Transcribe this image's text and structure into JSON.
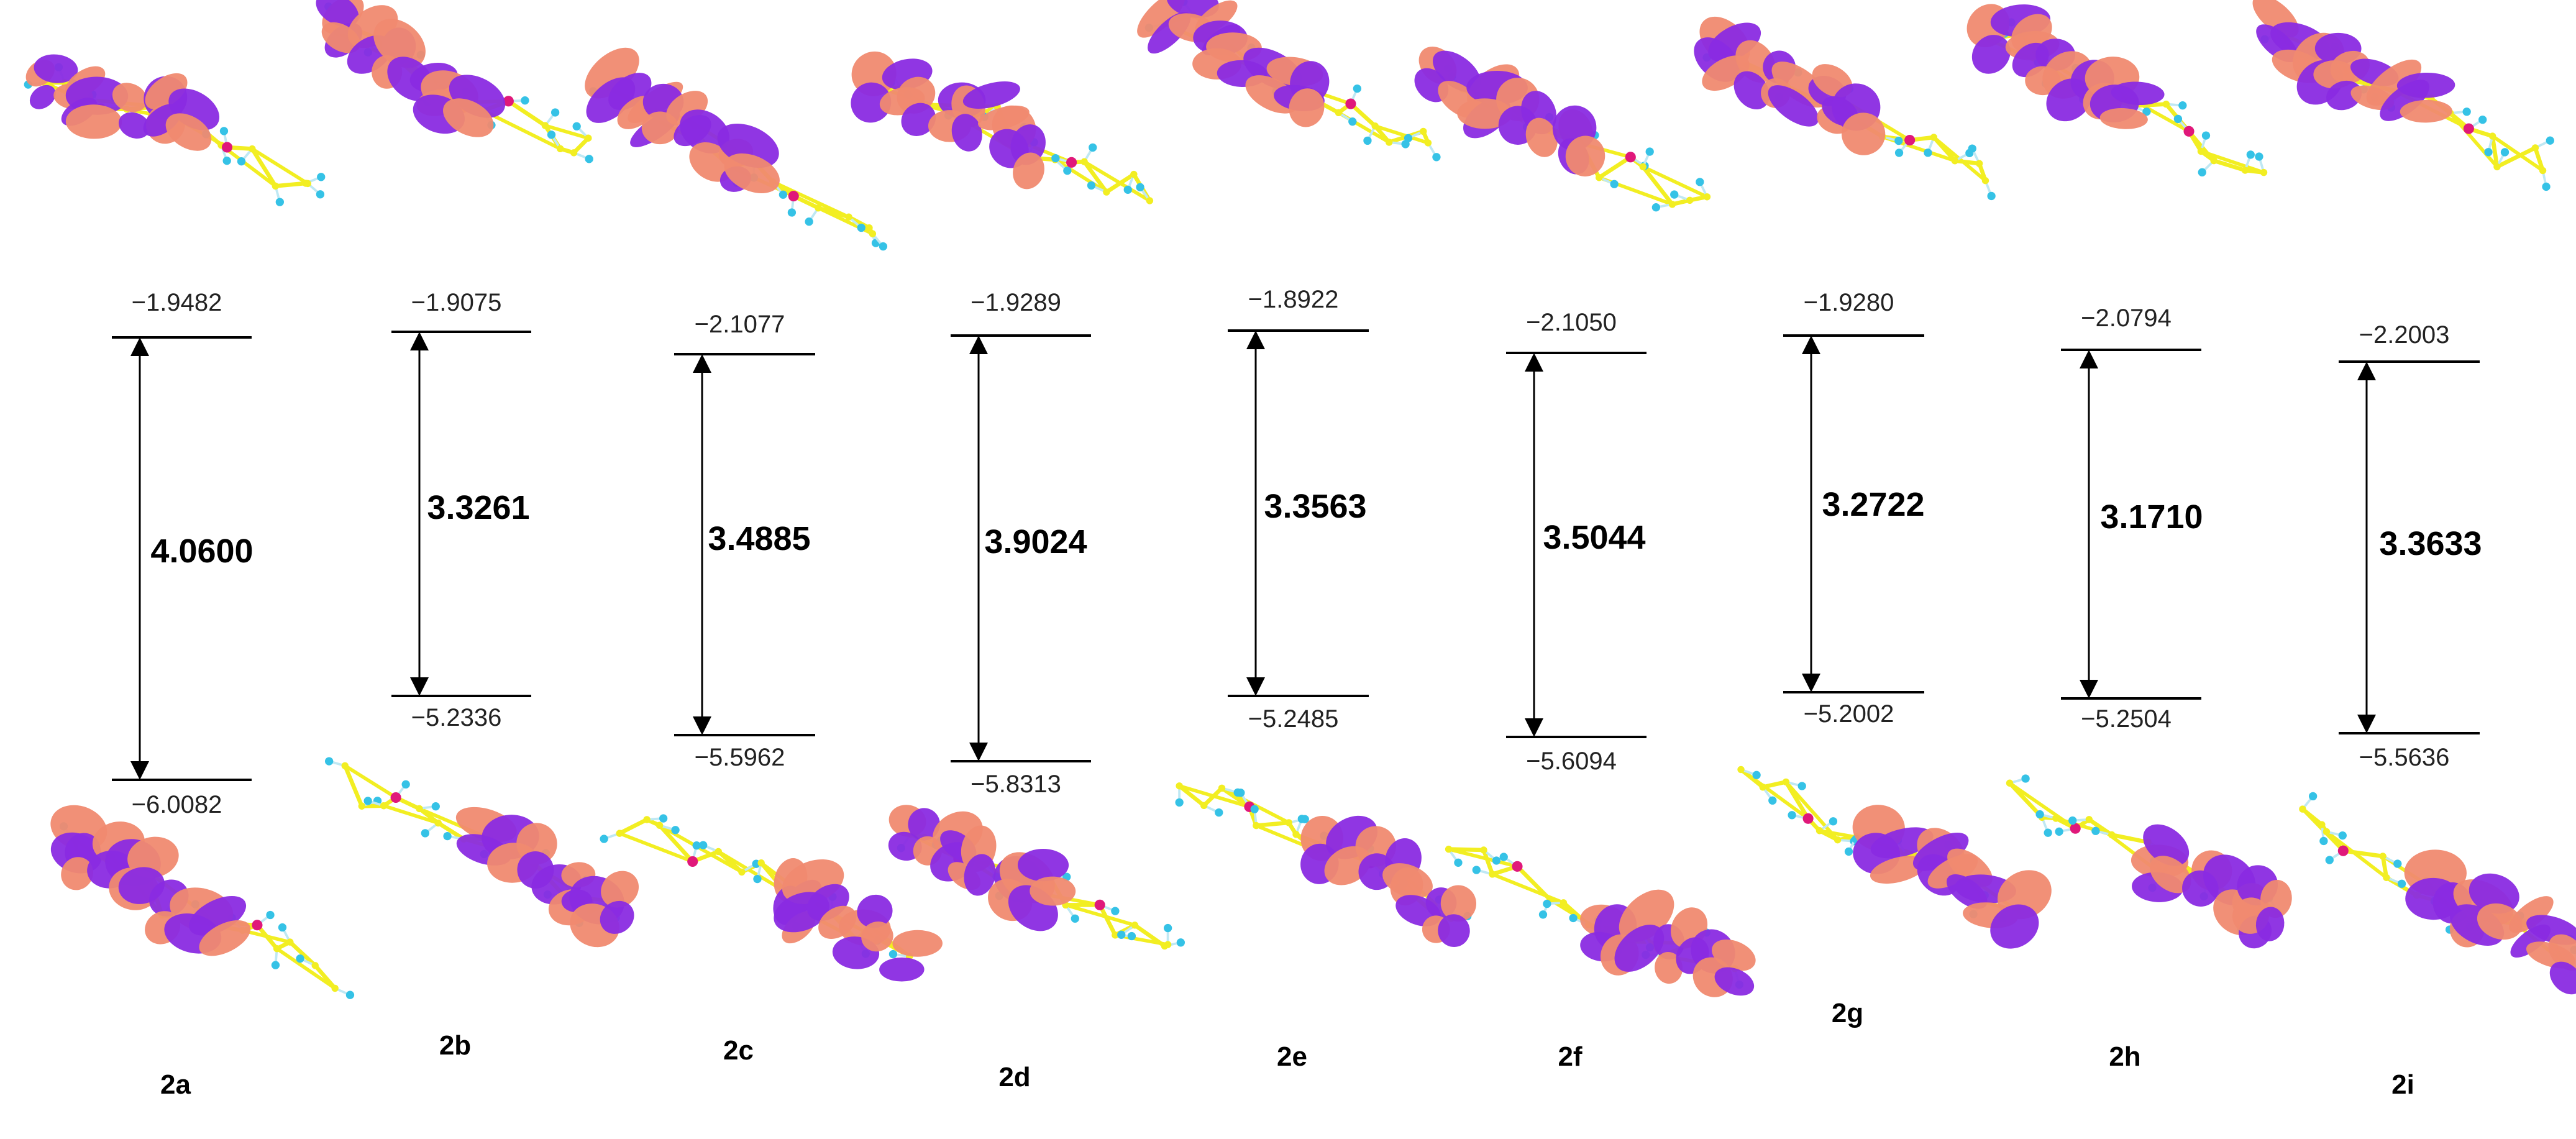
{
  "figure": {
    "type": "homo-lumo-energy-level-diagram",
    "colors": {
      "orbital_positive": "#f08a70",
      "orbital_negative": "#8a2be2",
      "carbon": "#f2ee22",
      "hydrogen": "#35c2e6",
      "heteroatom": "#e0187a",
      "substituent": "#d9a23c",
      "line": "#000000"
    },
    "compounds": [
      {
        "label": "2a",
        "lumo": "−1.9482",
        "homo": "−6.0082",
        "gap": "4.0600"
      },
      {
        "label": "2b",
        "lumo": "−1.9075",
        "homo": "−5.2336",
        "gap": "3.3261"
      },
      {
        "label": "2c",
        "lumo": "−2.1077",
        "homo": "−5.5962",
        "gap": "3.4885"
      },
      {
        "label": "2d",
        "lumo": "−1.9289",
        "homo": "−5.8313",
        "gap": "3.9024"
      },
      {
        "label": "2e",
        "lumo": "−1.8922",
        "homo": "−5.2485",
        "gap": "3.3563"
      },
      {
        "label": "2f",
        "lumo": "−2.1050",
        "homo": "−5.6094",
        "gap": "3.5044"
      },
      {
        "label": "2g",
        "lumo": "−1.9280",
        "homo": "−5.2002",
        "gap": "3.2722"
      },
      {
        "label": "2h",
        "lumo": "−2.0794",
        "homo": "−5.2504",
        "gap": "3.1710"
      },
      {
        "label": "2i",
        "lumo": "−2.2003",
        "homo": "−5.5636",
        "gap": "3.3633"
      }
    ]
  }
}
